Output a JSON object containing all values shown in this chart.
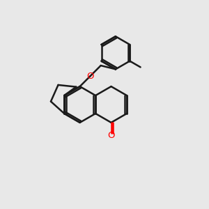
{
  "background_color": "#e8e8e8",
  "bond_color": "#1a1a1a",
  "oxygen_color": "#ff0000",
  "line_width": 1.8,
  "figsize": [
    3.0,
    3.0
  ],
  "dpi": 100
}
